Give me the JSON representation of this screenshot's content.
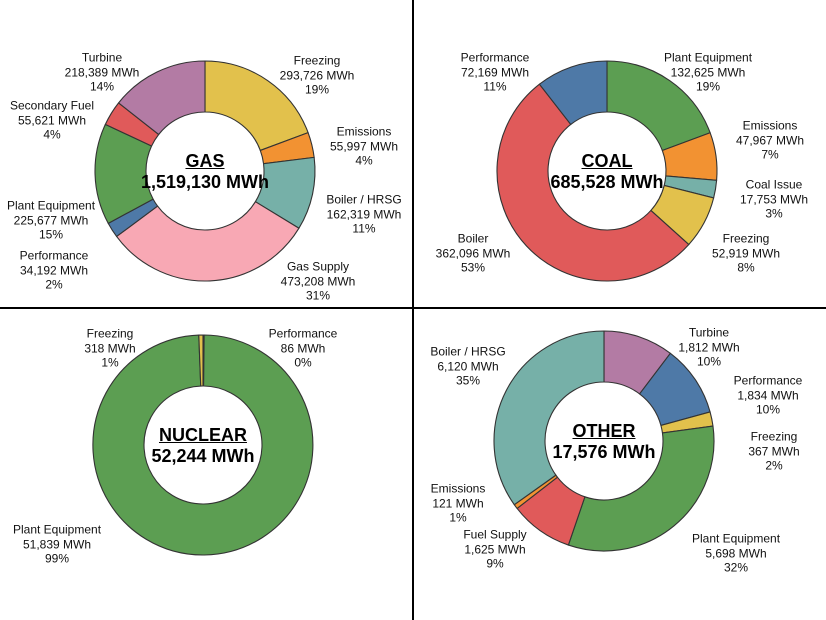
{
  "page": {
    "background_color": "#ffffff",
    "divider_color": "#000000",
    "unit": "MWh"
  },
  "chart_data": [
    {
      "type": "donut",
      "key": "gas",
      "title": "GAS",
      "center_total": "1,519,130 MWh",
      "total_value": 1519130,
      "legend_position": "none",
      "slices": [
        {
          "label": "Freezing",
          "value": 293726,
          "value_label": "293,726 MWh",
          "pct_label": "19%",
          "color": "#E2C14C"
        },
        {
          "label": "Emissions",
          "value": 55997,
          "value_label": "55,997 MWh",
          "pct_label": "4%",
          "color": "#F29232"
        },
        {
          "label": "Boiler / HRSG",
          "value": 162319,
          "value_label": "162,319 MWh",
          "pct_label": "11%",
          "color": "#76B0A8"
        },
        {
          "label": "Gas Supply",
          "value": 473208,
          "value_label": "473,208 MWh",
          "pct_label": "31%",
          "color": "#F8A8B4"
        },
        {
          "label": "Performance",
          "value": 34192,
          "value_label": "34,192 MWh",
          "pct_label": "2%",
          "color": "#4E79A7"
        },
        {
          "label": "Plant Equipment",
          "value": 225677,
          "value_label": "225,677 MWh",
          "pct_label": "15%",
          "color": "#5C9E52"
        },
        {
          "label": "Secondary Fuel",
          "value": 55621,
          "value_label": "55,621 MWh",
          "pct_label": "4%",
          "color": "#E05A5A"
        },
        {
          "label": "Turbine",
          "value": 218389,
          "value_label": "218,389 MWh",
          "pct_label": "14%",
          "color": "#B37BA4"
        }
      ]
    },
    {
      "type": "donut",
      "key": "coal",
      "title": "COAL",
      "center_total": "685,528 MWh",
      "total_value": 685528,
      "legend_position": "none",
      "slices": [
        {
          "label": "Plant Equipment",
          "value": 132625,
          "value_label": "132,625 MWh",
          "pct_label": "19%",
          "color": "#5C9E52"
        },
        {
          "label": "Emissions",
          "value": 47967,
          "value_label": "47,967 MWh",
          "pct_label": "7%",
          "color": "#F29232"
        },
        {
          "label": "Coal Issue",
          "value": 17753,
          "value_label": "17,753 MWh",
          "pct_label": "3%",
          "color": "#76B0A8"
        },
        {
          "label": "Freezing",
          "value": 52919,
          "value_label": "52,919 MWh",
          "pct_label": "8%",
          "color": "#E2C14C"
        },
        {
          "label": "Boiler",
          "value": 362096,
          "value_label": "362,096 MWh",
          "pct_label": "53%",
          "color": "#E05A5A"
        },
        {
          "label": "Performance",
          "value": 72169,
          "value_label": "72,169 MWh",
          "pct_label": "11%",
          "color": "#4E79A7"
        }
      ]
    },
    {
      "type": "donut",
      "key": "nuclear",
      "title": "NUCLEAR",
      "center_total": "52,244 MWh",
      "total_value": 52244,
      "legend_position": "none",
      "slices": [
        {
          "label": "Performance",
          "value": 86,
          "value_label": "86 MWh",
          "pct_label": "0%",
          "color": "#4E79A7"
        },
        {
          "label": "Plant Equipment",
          "value": 51839,
          "value_label": "51,839 MWh",
          "pct_label": "99%",
          "color": "#5C9E52"
        },
        {
          "label": "Freezing",
          "value": 318,
          "value_label": "318 MWh",
          "pct_label": "1%",
          "color": "#E2C14C"
        }
      ]
    },
    {
      "type": "donut",
      "key": "other",
      "title": "OTHER",
      "center_total": "17,576 MWh",
      "total_value": 17576,
      "legend_position": "none",
      "slices": [
        {
          "label": "Turbine",
          "value": 1812,
          "value_label": "1,812 MWh",
          "pct_label": "10%",
          "color": "#B37BA4"
        },
        {
          "label": "Performance",
          "value": 1834,
          "value_label": "1,834 MWh",
          "pct_label": "10%",
          "color": "#4E79A7"
        },
        {
          "label": "Freezing",
          "value": 367,
          "value_label": "367 MWh",
          "pct_label": "2%",
          "color": "#E2C14C"
        },
        {
          "label": "Plant Equipment",
          "value": 5698,
          "value_label": "5,698 MWh",
          "pct_label": "32%",
          "color": "#5C9E52"
        },
        {
          "label": "Fuel Supply",
          "value": 1625,
          "value_label": "1,625 MWh",
          "pct_label": "9%",
          "color": "#E05A5A"
        },
        {
          "label": "Emissions",
          "value": 121,
          "value_label": "121 MWh",
          "pct_label": "1%",
          "color": "#F29232"
        },
        {
          "label": "Boiler / HRSG",
          "value": 6120,
          "value_label": "6,120 MWh",
          "pct_label": "35%",
          "color": "#76B0A8"
        }
      ]
    }
  ]
}
